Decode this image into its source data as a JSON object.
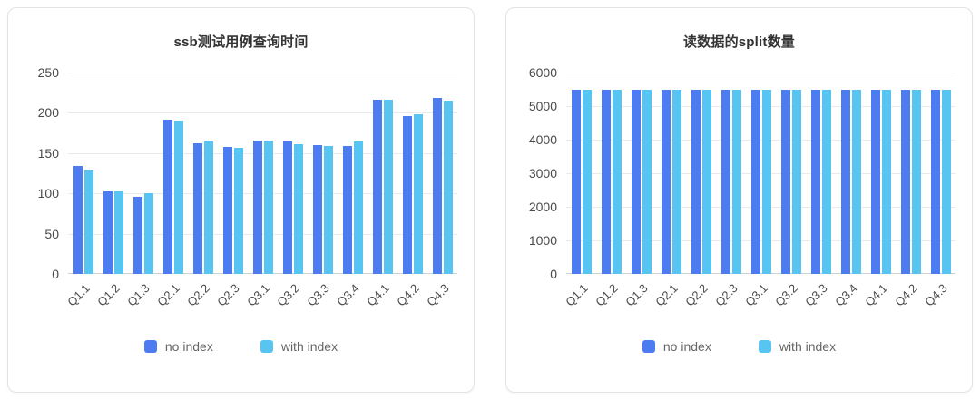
{
  "page": {
    "background": "#ffffff",
    "grid_color": "#eaeaea",
    "axis_color": "#d2d2d2"
  },
  "chart_data": [
    {
      "type": "bar",
      "title": "ssb测试用例查询时间",
      "categories": [
        "Q1.1",
        "Q1.2",
        "Q1.3",
        "Q2.1",
        "Q2.2",
        "Q2.3",
        "Q3.1",
        "Q3.2",
        "Q3.3",
        "Q3.4",
        "Q4.1",
        "Q4.2",
        "Q4.3"
      ],
      "series": [
        {
          "name": "no index",
          "color": "#4D7CF0",
          "values": [
            134,
            102,
            96,
            192,
            162,
            158,
            165,
            164,
            160,
            159,
            216,
            196,
            218
          ]
        },
        {
          "name": "with index",
          "color": "#57C4F2",
          "values": [
            130,
            103,
            100,
            190,
            165,
            157,
            166,
            161,
            159,
            164,
            216,
            198,
            215
          ]
        }
      ],
      "xlabel": "",
      "ylabel": "",
      "ylim": [
        0,
        250
      ],
      "ytick_step": 50,
      "grid": true,
      "legend_position": "bottom"
    },
    {
      "type": "bar",
      "title": "读数据的split数量",
      "categories": [
        "Q1.1",
        "Q1.2",
        "Q1.3",
        "Q2.1",
        "Q2.2",
        "Q2.3",
        "Q3.1",
        "Q3.2",
        "Q3.3",
        "Q3.4",
        "Q4.1",
        "Q4.2",
        "Q4.3"
      ],
      "series": [
        {
          "name": "no index",
          "color": "#4D7CF0",
          "values": [
            5480,
            5480,
            5480,
            5480,
            5480,
            5480,
            5480,
            5480,
            5480,
            5480,
            5480,
            5480,
            5480
          ]
        },
        {
          "name": "with index",
          "color": "#57C4F2",
          "values": [
            5480,
            5480,
            5480,
            5480,
            5480,
            5480,
            5480,
            5480,
            5480,
            5480,
            5480,
            5480,
            5480
          ]
        }
      ],
      "xlabel": "",
      "ylabel": "",
      "ylim": [
        0,
        6000
      ],
      "ytick_step": 1000,
      "grid": true,
      "legend_position": "bottom"
    }
  ]
}
